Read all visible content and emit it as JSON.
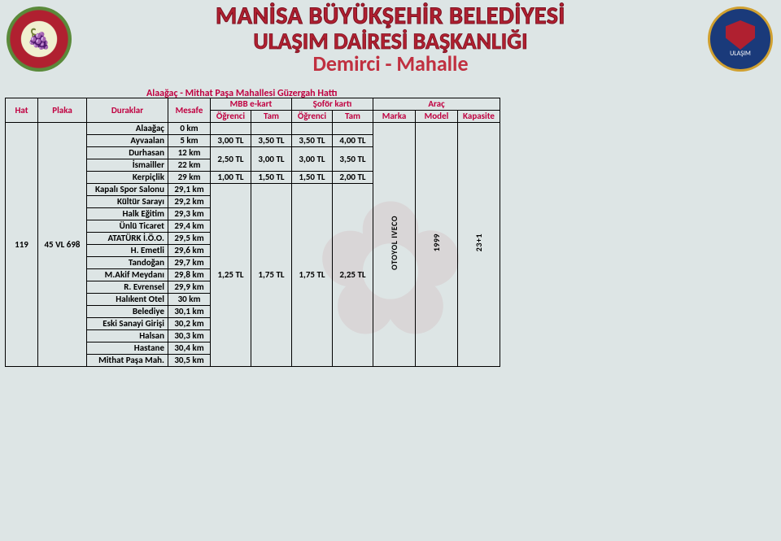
{
  "header": {
    "line1": "MANİSA BÜYÜKŞEHİR BELEDİYESİ",
    "line2": "ULAŞIM DAİRESİ BAŞKANLIĞI",
    "line3": "Demirci - Mahalle"
  },
  "route_title": "Alaağaç - Mithat Paşa Mahallesi Güzergah Hattı",
  "columns": {
    "hat": "Hat",
    "plaka": "Plaka",
    "duraklar": "Duraklar",
    "mesafe": "Mesafe",
    "mbb": "MBB e-kart",
    "sofor": "Şoför kartı",
    "arac": "Araç",
    "ogrenci": "Öğrenci",
    "tam": "Tam",
    "marka": "Marka",
    "model": "Model",
    "kapasite": "Kapasite"
  },
  "hat": "119",
  "plaka": "45 VL 698",
  "arac_marka": "OTOYOL IVECO",
  "arac_model": "1999",
  "arac_kapasite": "23+1",
  "stops": [
    {
      "name": "Alaağaç",
      "dist": "0 km"
    },
    {
      "name": "Ayvaalan",
      "dist": "5 km"
    },
    {
      "name": "Durhasan",
      "dist": "12 km"
    },
    {
      "name": "İsmailler",
      "dist": "22 km"
    },
    {
      "name": "Kerpiçlik",
      "dist": "29 km"
    },
    {
      "name": "Kapalı Spor Salonu",
      "dist": "29,1 km"
    },
    {
      "name": "Kültür Sarayı",
      "dist": "29,2 km"
    },
    {
      "name": "Halk Eğitim",
      "dist": "29,3 km"
    },
    {
      "name": "Ünlü Ticaret",
      "dist": "29,4 km"
    },
    {
      "name": "ATATÜRK İ.Ö.O.",
      "dist": "29,5 km"
    },
    {
      "name": "H. Emetli",
      "dist": "29,6 km"
    },
    {
      "name": "Tandoğan",
      "dist": "29,7 km"
    },
    {
      "name": "M.Akif Meydanı",
      "dist": "29,8 km"
    },
    {
      "name": "R. Evrensel",
      "dist": "29,9 km"
    },
    {
      "name": "Halıkent Otel",
      "dist": "30 km"
    },
    {
      "name": "Belediye",
      "dist": "30,1 km"
    },
    {
      "name": "Eski Sanayi Girişi",
      "dist": "30,2 km"
    },
    {
      "name": "Halsan",
      "dist": "30,3 km"
    },
    {
      "name": "Hastane",
      "dist": "30,4 km"
    },
    {
      "name": "Mithat Paşa Mah.",
      "dist": "30,5 km"
    }
  ],
  "fares": [
    {
      "rowspan": 1,
      "mbb_o": "3,00 TL",
      "mbb_t": "3,50 TL",
      "sof_o": "3,50 TL",
      "sof_t": "4,00 TL"
    },
    {
      "rowspan": 2,
      "mbb_o": "2,50 TL",
      "mbb_t": "3,00 TL",
      "sof_o": "3,00 TL",
      "sof_t": "3,50 TL"
    },
    {
      "rowspan": 1,
      "mbb_o": "1,00 TL",
      "mbb_t": "1,50 TL",
      "sof_o": "1,50 TL",
      "sof_t": "2,00 TL"
    },
    {
      "rowspan": 15,
      "mbb_o": "1,25 TL",
      "mbb_t": "1,75 TL",
      "sof_o": "1,75 TL",
      "sof_t": "2,25 TL"
    }
  ],
  "colors": {
    "brand_red": "#b02030",
    "accent_magenta": "#c00040",
    "bg": "#dde5e5"
  }
}
